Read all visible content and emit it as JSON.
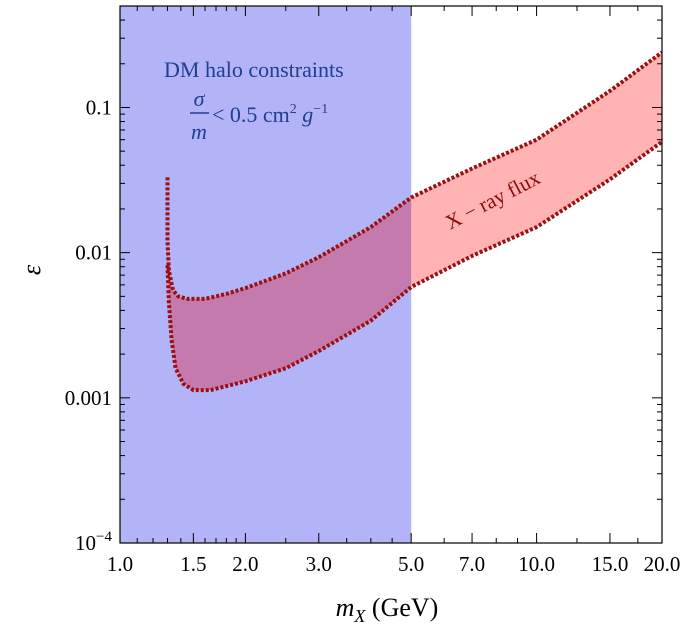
{
  "chart_data": {
    "type": "area",
    "x_scale": "log",
    "y_scale": "log",
    "xlim": [
      1.0,
      20.0
    ],
    "ylim": [
      0.0001,
      0.5
    ],
    "xlabel_main": "m",
    "xlabel_sub": "X",
    "xlabel_unit": " (GeV)",
    "ylabel": "ε",
    "x_ticks": [
      {
        "value": 1.0,
        "label": "1.0"
      },
      {
        "value": 1.5,
        "label": "1.5"
      },
      {
        "value": 2.0,
        "label": "2.0"
      },
      {
        "value": 3.0,
        "label": "3.0"
      },
      {
        "value": 5.0,
        "label": "5.0"
      },
      {
        "value": 7.0,
        "label": "7.0"
      },
      {
        "value": 10.0,
        "label": "10.0"
      },
      {
        "value": 15.0,
        "label": "15.0"
      },
      {
        "value": 20.0,
        "label": "20.0"
      }
    ],
    "y_ticks": [
      {
        "value": 0.0001,
        "label": "10",
        "exp": "−4"
      },
      {
        "value": 0.001,
        "label": "0.001"
      },
      {
        "value": 0.01,
        "label": "0.01"
      },
      {
        "value": 0.1,
        "label": "0.1"
      }
    ],
    "regions": [
      {
        "kind": "vertical-band",
        "x_range": [
          1.0,
          5.0
        ],
        "color": "#b3b3f7",
        "label_line1": "DM halo constraints",
        "label_num": "σ",
        "label_den": "m",
        "label_ineq": " < 0.5 cm",
        "label_exp1": "2",
        "label_g": " g",
        "label_exp2": "−1"
      },
      {
        "kind": "band",
        "color": "#ffb3b3",
        "overlap_color": "#c57aad",
        "edge_color": "#9b0f0f",
        "label": "X − ray flux",
        "upper": [
          [
            1.3,
            0.033
          ],
          [
            1.3,
            0.012
          ],
          [
            1.31,
            0.0075
          ],
          [
            1.34,
            0.0055
          ],
          [
            1.38,
            0.005
          ],
          [
            1.45,
            0.0048
          ],
          [
            1.6,
            0.0048
          ],
          [
            1.8,
            0.0052
          ],
          [
            2.0,
            0.0057
          ],
          [
            2.5,
            0.0072
          ],
          [
            3.0,
            0.0093
          ],
          [
            4.0,
            0.015
          ],
          [
            5.0,
            0.024
          ],
          [
            7.0,
            0.038
          ],
          [
            10.0,
            0.06
          ],
          [
            15.0,
            0.13
          ],
          [
            20.0,
            0.24
          ]
        ],
        "lower": [
          [
            1.3,
            0.0082
          ],
          [
            1.31,
            0.0045
          ],
          [
            1.33,
            0.0025
          ],
          [
            1.36,
            0.0016
          ],
          [
            1.42,
            0.00125
          ],
          [
            1.5,
            0.00113
          ],
          [
            1.65,
            0.00113
          ],
          [
            2.0,
            0.0013
          ],
          [
            2.5,
            0.0016
          ],
          [
            3.0,
            0.0021
          ],
          [
            4.0,
            0.0034
          ],
          [
            5.0,
            0.0058
          ],
          [
            7.0,
            0.0095
          ],
          [
            10.0,
            0.015
          ],
          [
            15.0,
            0.032
          ],
          [
            20.0,
            0.058
          ]
        ]
      }
    ]
  }
}
